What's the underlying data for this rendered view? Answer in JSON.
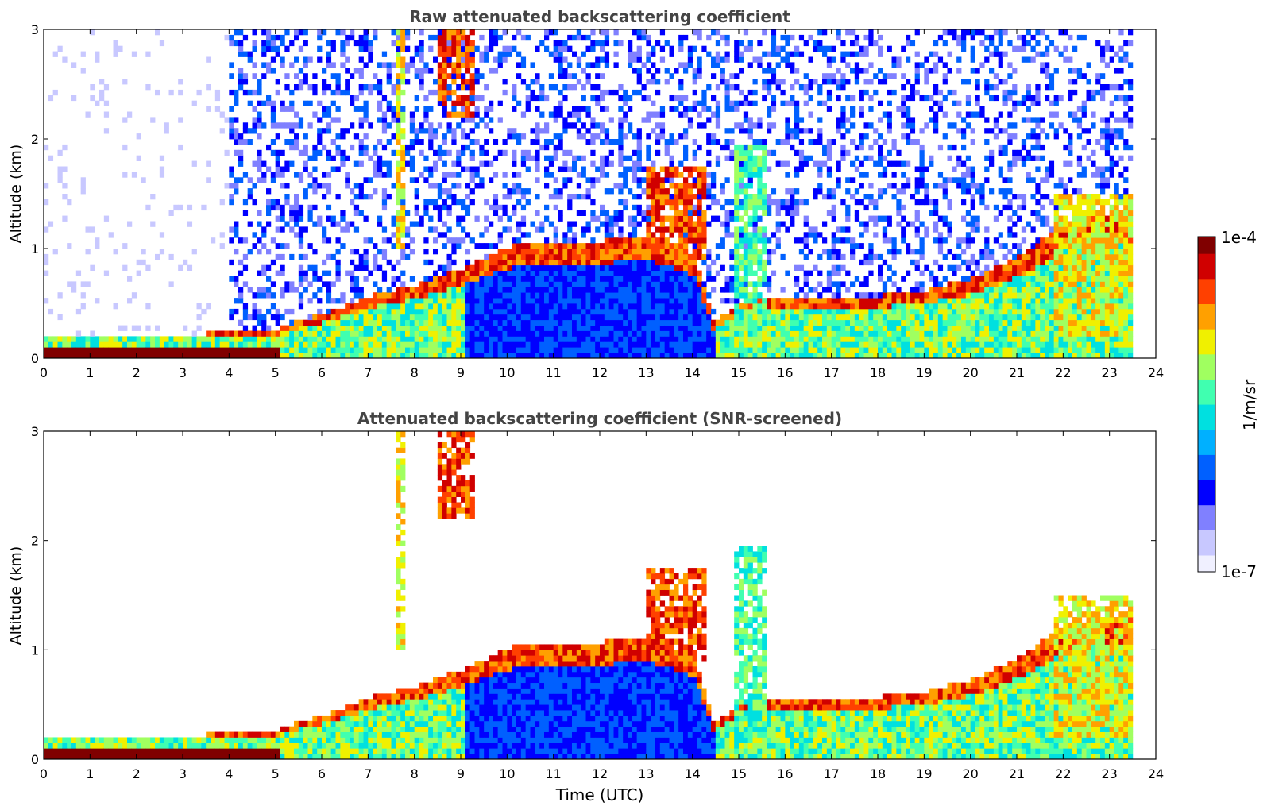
{
  "chart_data": [
    {
      "type": "heatmap",
      "title": "Raw attenuated backscattering coefficient",
      "xlabel": "",
      "ylabel": "Altitude (km)",
      "xlim": [
        0,
        24
      ],
      "ylim": [
        0,
        3
      ],
      "xticks": [
        "0",
        "1",
        "2",
        "3",
        "4",
        "5",
        "6",
        "7",
        "8",
        "9",
        "10",
        "11",
        "12",
        "13",
        "14",
        "15",
        "16",
        "17",
        "18",
        "19",
        "20",
        "21",
        "22",
        "23",
        "24"
      ],
      "yticks": [
        "0",
        "1",
        "2",
        "3"
      ],
      "screened": false,
      "data_end_hour": 23.5,
      "boundary_layer_top_km": [
        [
          0,
          0.2
        ],
        [
          3.5,
          0.2
        ],
        [
          5,
          0.25
        ],
        [
          6,
          0.38
        ],
        [
          7,
          0.55
        ],
        [
          8,
          0.65
        ],
        [
          9,
          0.8
        ],
        [
          10,
          1.0
        ],
        [
          12,
          1.05
        ],
        [
          13,
          1.1
        ],
        [
          14,
          0.9
        ],
        [
          14.4,
          0.3
        ],
        [
          15,
          0.5
        ],
        [
          16,
          0.5
        ],
        [
          18,
          0.55
        ],
        [
          19,
          0.6
        ],
        [
          20,
          0.7
        ],
        [
          21,
          0.9
        ],
        [
          22,
          1.2
        ],
        [
          23,
          1.3
        ],
        [
          23.5,
          1.3
        ]
      ],
      "cloud_features": [
        {
          "t0": 7.55,
          "t1": 7.75,
          "z0": 1.0,
          "z1": 3.0,
          "level": "high"
        },
        {
          "t0": 8.4,
          "t1": 9.2,
          "z0": 2.2,
          "z1": 3.0,
          "level": "very high"
        },
        {
          "t0": 12.9,
          "t1": 14.2,
          "z0": 0.9,
          "z1": 1.75,
          "level": "very high"
        },
        {
          "t0": 14.8,
          "t1": 15.5,
          "z0": 0.2,
          "z1": 1.95,
          "level": "medium"
        },
        {
          "t0": 21.8,
          "t1": 23.5,
          "z0": 0.2,
          "z1": 1.5,
          "level": "high"
        }
      ]
    },
    {
      "type": "heatmap",
      "title": "Attenuated backscattering coefficient (SNR-screened)",
      "xlabel": "Time (UTC)",
      "ylabel": "Altitude (km)",
      "xlim": [
        0,
        24
      ],
      "ylim": [
        0,
        3
      ],
      "xticks": [
        "0",
        "1",
        "2",
        "3",
        "4",
        "5",
        "6",
        "7",
        "8",
        "9",
        "10",
        "11",
        "12",
        "13",
        "14",
        "15",
        "16",
        "17",
        "18",
        "19",
        "20",
        "21",
        "22",
        "23",
        "24"
      ],
      "yticks": [
        "0",
        "1",
        "2",
        "3"
      ],
      "screened": true,
      "data_end_hour": 23.5,
      "boundary_layer_top_km": [
        [
          0,
          0.2
        ],
        [
          3.5,
          0.2
        ],
        [
          5,
          0.25
        ],
        [
          6,
          0.38
        ],
        [
          7,
          0.55
        ],
        [
          8,
          0.65
        ],
        [
          9,
          0.8
        ],
        [
          10,
          1.0
        ],
        [
          12,
          1.05
        ],
        [
          13,
          1.1
        ],
        [
          14,
          0.9
        ],
        [
          14.4,
          0.3
        ],
        [
          15,
          0.5
        ],
        [
          16,
          0.5
        ],
        [
          18,
          0.55
        ],
        [
          19,
          0.6
        ],
        [
          20,
          0.7
        ],
        [
          21,
          0.9
        ],
        [
          22,
          1.2
        ],
        [
          23,
          1.3
        ],
        [
          23.5,
          1.3
        ]
      ],
      "cloud_features": [
        {
          "t0": 7.55,
          "t1": 7.75,
          "z0": 1.0,
          "z1": 3.0,
          "level": "high"
        },
        {
          "t0": 8.4,
          "t1": 9.2,
          "z0": 2.2,
          "z1": 3.0,
          "level": "very high"
        },
        {
          "t0": 12.9,
          "t1": 14.2,
          "z0": 0.9,
          "z1": 1.75,
          "level": "very high"
        },
        {
          "t0": 14.8,
          "t1": 15.5,
          "z0": 0.2,
          "z1": 1.95,
          "level": "medium"
        },
        {
          "t0": 21.8,
          "t1": 23.5,
          "z0": 0.2,
          "z1": 1.5,
          "level": "high"
        }
      ]
    }
  ],
  "colorbar": {
    "label": "1/m/sr",
    "max_label": "1e-4",
    "min_label": "1e-7",
    "min": 1e-07,
    "max": 0.0001,
    "scale": "log",
    "colors": [
      "#f0f0ff",
      "#c8c8ff",
      "#8080ff",
      "#0000ff",
      "#0060ff",
      "#00b0ff",
      "#00e0e0",
      "#40ffb0",
      "#a0ff60",
      "#f0f000",
      "#ffa000",
      "#ff4000",
      "#d00000",
      "#800000"
    ]
  }
}
